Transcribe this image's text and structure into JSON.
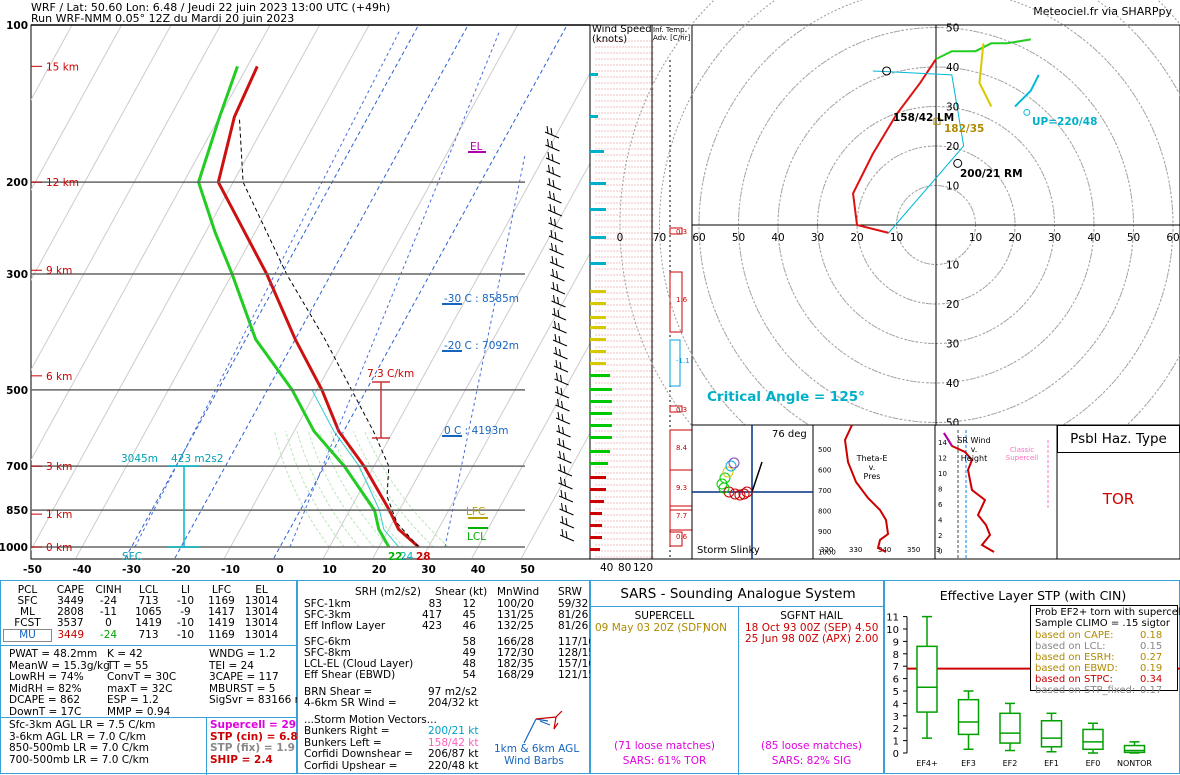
{
  "header": {
    "line1": "WRF / Lat: 50.60 Lon: 6.48 / Jeudi 22 juin 2023 13:00 UTC (+49h)",
    "line2": "Run WRF-NMM 0.05° 12Z du Mardi 20 juin 2023",
    "credit": "Meteociel.fr via SHARPpy"
  },
  "skewt": {
    "pressure_labels": [
      "100",
      "200",
      "300",
      "500",
      "700",
      "850",
      "1000"
    ],
    "height_labels": [
      "15 km",
      "12 km",
      "9 km",
      "6 km",
      "3 km",
      "1 km",
      "0 km"
    ],
    "temp_ticks": [
      "-50",
      "-40",
      "-30",
      "-20",
      "-10",
      "0",
      "10",
      "20",
      "30",
      "40",
      "50"
    ],
    "el_label": "EL",
    "lfc_label": "LFC",
    "lcl_label": "LCL",
    "lapse_label": "7.3 C/km",
    "minus30": "-30 C : 8585m",
    "minus20": "-20 C : 7092m",
    "zero": "0 C : 4193m",
    "eff_base": "3045m",
    "eff_srh": "423 m2s2",
    "sfc": "SFC",
    "sfc_td": "22",
    "sfc_twb": "24",
    "sfc_t": "28"
  },
  "windspeed": {
    "title1": "Wind Speed",
    "title2": "(knots)",
    "ticks": [
      "40",
      "80",
      "120"
    ]
  },
  "inferred": {
    "title1": "Inf. Temp.",
    "title2": "Adv. [C/hr]",
    "values": [
      "0.3",
      "1.6",
      "-1.1",
      "0.3",
      "8.4",
      "9.3",
      "7.7",
      "0.6"
    ]
  },
  "hodograph": {
    "rings": [
      "60",
      "50",
      "40",
      "30",
      "20",
      "10"
    ],
    "lm": "158/42 LM",
    "rm": "200/21 RM",
    "mean": "182/35",
    "up": "UP=220/48",
    "critical": "Critical Angle = 125°",
    "xticks_left": [
      "0",
      "70",
      "60",
      "50",
      "40",
      "30",
      "20",
      "10"
    ],
    "xticks_right": [
      "10",
      "20",
      "30",
      "40",
      "50",
      "60",
      "70",
      "8"
    ]
  },
  "slinky": {
    "deg": "76 deg",
    "label": "Storm Slinky"
  },
  "thetae": {
    "title1": "Theta-E",
    "title2": "v.",
    "title3": "Pres",
    "yticks": [
      "500",
      "600",
      "700",
      "800",
      "900",
      "1000"
    ],
    "xticks": [
      "320",
      "330",
      "340",
      "350",
      "3"
    ]
  },
  "srwind": {
    "title1": "SR Wind",
    "title2": "v.",
    "title3": "Height",
    "yticks": [
      "14",
      "12",
      "10",
      "8",
      "6",
      "4",
      "2",
      "0"
    ],
    "classic1": "Classic",
    "classic2": "Supercell"
  },
  "hazard": {
    "title": "Psbl Haz. Type",
    "value": "TOR"
  },
  "parcels": {
    "headers": [
      "PCL",
      "CAPE",
      "CINH",
      "LCL",
      "LI",
      "LFC",
      "EL"
    ],
    "rows": [
      [
        "SFC",
        "3449",
        "-24",
        "713",
        "-10",
        "1169",
        "13014"
      ],
      [
        "ML",
        "2808",
        "-11",
        "1065",
        "-9",
        "1417",
        "13014"
      ],
      [
        "FCST",
        "3537",
        "0",
        "1419",
        "-10",
        "1419",
        "13014"
      ],
      [
        "MU",
        "3449",
        "-24",
        "713",
        "-10",
        "1169",
        "13014"
      ]
    ]
  },
  "indices": {
    "col1": [
      "PWAT = 48.2mm",
      "MeanW = 15.3g/kg",
      "LowRH = 74%",
      "MidRH = 82%",
      "DCAPE = 862",
      "DownT = 17C"
    ],
    "col2": [
      "K = 42",
      "TT = 55",
      "ConvT = 30C",
      "maxT = 32C",
      "ESP = 1.2",
      "MMP = 0.94"
    ],
    "col3": [
      "WNDG = 1.2",
      "TEI = 24",
      "3CAPE = 117",
      "MBURST = 5",
      "",
      "SigSvr = 83166 m3/s3"
    ]
  },
  "lapse": [
    "Sfc-3km AGL LR = 7.5 C/km",
    "3-6km AGL LR = 7.0 C/km",
    "850-500mb LR = 7.0 C/km",
    "700-500mb LR = 7.0 C/km"
  ],
  "composites": [
    "Supercell = 29.2",
    "STP (cin) = 6.8",
    "STP (fix) = 1.9",
    "SHIP = 2.4"
  ],
  "kinematics": {
    "headers": [
      "SRH (m2/s2)",
      "Shear (kt)",
      "MnWind",
      "SRW"
    ],
    "rows": [
      [
        "SFC-1km",
        "83",
        "12",
        "100/20",
        "59/32"
      ],
      [
        "SFC-3km",
        "417",
        "45",
        "131/25",
        "81/26"
      ],
      [
        "Eff Inflow Layer",
        "423",
        "46",
        "132/25",
        "81/26"
      ],
      [
        "SFC-6km",
        "",
        "58",
        "166/28",
        "117/16"
      ],
      [
        "SFC-8km",
        "",
        "49",
        "172/30",
        "128/15"
      ],
      [
        "LCL-EL (Cloud Layer)",
        "",
        "48",
        "182/35",
        "157/16"
      ],
      [
        "Eff Shear (EBWD)",
        "",
        "54",
        "168/29",
        "121/15"
      ]
    ],
    "brn_label": "BRN Shear =",
    "brn": "97 m2/s2",
    "sr46_label": "4-6km SR Wind =",
    "sr46": "204/32 kt",
    "motion_title": "...Storm Motion Vectors...",
    "motion": [
      [
        "Bunkers Right =",
        "200/21 kt"
      ],
      [
        "Bunkers Left =",
        "158/42 kt"
      ],
      [
        "Corfidi Downshear =",
        "206/87 kt"
      ],
      [
        "Corfidi Upshear =",
        "220/48 kt"
      ]
    ],
    "barb_label1": "1km & 6km AGL",
    "barb_label2": "Wind Barbs"
  },
  "sars": {
    "title": "SARS - Sounding Analogue System",
    "supercell": "SUPERCELL",
    "hail": "SGFNT HAIL",
    "sc_match": "09 May 03 20Z (SDF)",
    "sc_type": "NON",
    "hail_matches": [
      [
        "18 Oct 93 00Z (SEP)",
        "4.50"
      ],
      [
        "25 Jun 98 00Z (APX)",
        "2.00"
      ]
    ],
    "sc_loose": "(71 loose matches)",
    "sc_tor": "SARS: 61% TOR",
    "hail_loose": "(85 loose matches)",
    "hail_sig": "SARS: 82% SIG"
  },
  "stp": {
    "title": "Effective Layer STP (with CIN)",
    "box": [
      "Prob EF2+ torn with supercell",
      "Sample CLIMO = .15 sigtor"
    ],
    "probs": [
      [
        "based on CAPE:",
        "0.18"
      ],
      [
        "based on LCL:",
        "0.15"
      ],
      [
        "based on ESRH:",
        "0.27"
      ],
      [
        "based on EBWD:",
        "0.19"
      ],
      [
        "based on STPC:",
        "0.34"
      ],
      [
        "based on STP_fixed:",
        "0.17"
      ]
    ],
    "yticks": [
      "11",
      "10",
      "9",
      "8",
      "7",
      "6",
      "5",
      "4",
      "3",
      "2",
      "1",
      "0"
    ],
    "categories": [
      "EF4+",
      "EF3",
      "EF2",
      "EF1",
      "EF0",
      "NONTOR"
    ]
  },
  "chart_data": [
    {
      "type": "line",
      "title": "",
      "xlabel": "",
      "ylabel": "",
      "x_ticks": [
        -50,
        -40,
        -30,
        -20,
        -10,
        0,
        10,
        20,
        30,
        40,
        50
      ],
      "ylim": [
        1000,
        100
      ],
      "series": [
        {
          "p": [
            1000,
            925,
            850,
            700,
            600,
            500,
            400,
            300,
            250,
            200,
            150,
            120
          ],
          "values": [
            28,
            22,
            18,
            8,
            -1,
            -9,
            -20,
            -33,
            -42,
            -53,
            -57,
            -58
          ]
        },
        {
          "p": [
            1000,
            925,
            850,
            700,
            600,
            500,
            400,
            300,
            250,
            200,
            150,
            120
          ],
          "values": [
            22,
            18,
            15,
            4,
            -6,
            -15,
            -28,
            -40,
            -48,
            -57,
            -60,
            -62
          ]
        }
      ]
    },
    {
      "type": "scatter",
      "title": "",
      "series": [
        {
          "name": "LM",
          "x": [
            -16
          ],
          "y": [
            39
          ]
        },
        {
          "name": "RM",
          "x": [
            7
          ],
          "y": [
            20
          ]
        },
        {
          "name": "UP",
          "x": [
            31
          ],
          "y": [
            37
          ]
        }
      ]
    },
    {
      "type": "bar",
      "title": "",
      "categories": [
        "EF4+",
        "EF3",
        "EF2",
        "EF1",
        "EF0",
        "NONTOR"
      ],
      "series": [
        {
          "name": "median",
          "values": [
            5.3,
            2.5,
            1.6,
            1.2,
            0.9,
            0.2
          ]
        },
        {
          "name": "q1",
          "values": [
            3.3,
            1.5,
            0.8,
            0.5,
            0.3,
            0.05
          ]
        },
        {
          "name": "q3",
          "values": [
            8.6,
            4.3,
            3.2,
            2.6,
            1.9,
            0.6
          ]
        }
      ],
      "ylim": [
        0,
        11
      ]
    }
  ]
}
